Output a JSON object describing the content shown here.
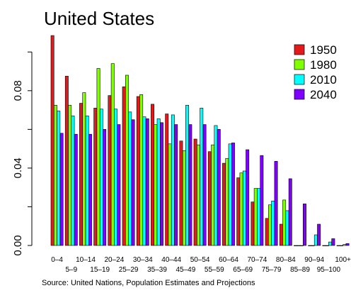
{
  "chart_data": {
    "type": "bar",
    "title": "United States",
    "source": "Source:  United Nations, Population Estimates and Projections",
    "xlabel": "",
    "ylabel": "",
    "ylim": [
      0,
      0.11
    ],
    "yticks": [
      "0.00",
      "0.04",
      "0.08"
    ],
    "ytick_values": [
      0.0,
      0.04,
      0.08
    ],
    "grid": false,
    "legend_position": "top-right",
    "categories": [
      "0–4",
      "5–9",
      "10–14",
      "15–19",
      "20–24",
      "25–29",
      "30–34",
      "35–39",
      "40–44",
      "45–49",
      "50–54",
      "55–59",
      "60–64",
      "65–69",
      "70–74",
      "75–79",
      "80–84",
      "85–89",
      "90–94",
      "95–100",
      "100+"
    ],
    "series": [
      {
        "name": "1950",
        "color": "#e31a1c",
        "values": [
          0.1085,
          0.0875,
          0.0735,
          0.071,
          0.0775,
          0.082,
          0.077,
          0.073,
          0.068,
          0.054,
          0.055,
          0.0485,
          0.0425,
          0.035,
          0.0225,
          0.014,
          0.011,
          0.0,
          0.0,
          0.0,
          0.0
        ]
      },
      {
        "name": "1980",
        "color": "#80ff00",
        "values": [
          0.0725,
          0.0725,
          0.079,
          0.0915,
          0.094,
          0.088,
          0.078,
          0.0625,
          0.0525,
          0.049,
          0.052,
          0.052,
          0.045,
          0.0375,
          0.0295,
          0.021,
          0.0235,
          0.0,
          0.0,
          0.0,
          0.0
        ]
      },
      {
        "name": "2010",
        "color": "#00ffff",
        "values": [
          0.0695,
          0.067,
          0.067,
          0.0705,
          0.0705,
          0.069,
          0.0665,
          0.0655,
          0.0675,
          0.0725,
          0.071,
          0.062,
          0.0525,
          0.0385,
          0.0295,
          0.023,
          0.018,
          0.0,
          0.0055,
          0.0018,
          0.0005
        ]
      },
      {
        "name": "2040",
        "color": "#8000ff",
        "values": [
          0.058,
          0.0575,
          0.0575,
          0.06,
          0.0625,
          0.065,
          0.0655,
          0.0635,
          0.0625,
          0.0625,
          0.0625,
          0.06,
          0.053,
          0.0495,
          0.0465,
          0.0435,
          0.0345,
          0.0215,
          0.011,
          0.0035,
          0.001
        ]
      }
    ]
  }
}
